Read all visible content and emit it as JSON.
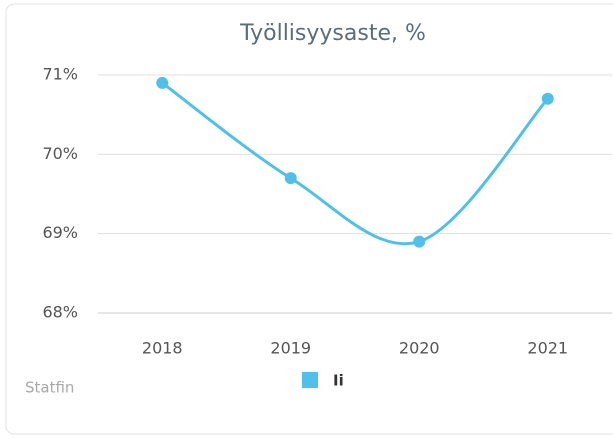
{
  "chart_data": {
    "type": "line",
    "title": "Työllisyysaste, %",
    "categories": [
      "2018",
      "2019",
      "2020",
      "2021"
    ],
    "series": [
      {
        "name": "Ii",
        "color": "#4fc1e9",
        "values": [
          70.9,
          69.7,
          68.9,
          70.7
        ]
      }
    ],
    "ylim": [
      68,
      71
    ],
    "yticks": [
      {
        "value": 68,
        "label": "68%"
      },
      {
        "value": 69,
        "label": "69%"
      },
      {
        "value": 70,
        "label": "70%"
      },
      {
        "value": 71,
        "label": "71%"
      }
    ],
    "grid": true,
    "credits": "Statfin"
  }
}
